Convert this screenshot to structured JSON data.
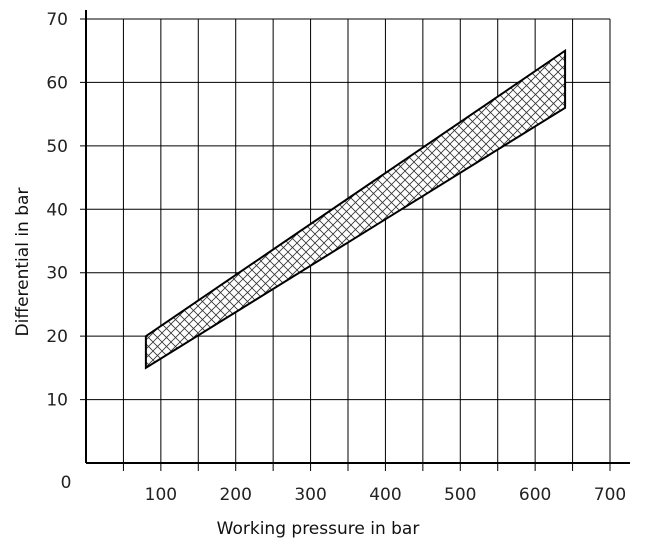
{
  "chart_data": {
    "type": "area",
    "title": "",
    "xlabel": "Working pressure in bar",
    "ylabel": "Differential in bar",
    "xlim": [
      0,
      700
    ],
    "ylim": [
      0,
      70
    ],
    "origin_label": "0",
    "x_ticks": [
      100,
      200,
      300,
      400,
      500,
      600,
      700
    ],
    "y_ticks": [
      10,
      20,
      30,
      40,
      50,
      60,
      70
    ],
    "grid": true,
    "x_grid_step": 50,
    "y_grid_step": 10,
    "band": {
      "fill_pattern": "crosshatch",
      "x": [
        80,
        640
      ],
      "upper": [
        20,
        65
      ],
      "lower": [
        15,
        56
      ]
    },
    "colors": {
      "line": "#000000",
      "grid": "#000000",
      "hatch": "#333333"
    }
  }
}
